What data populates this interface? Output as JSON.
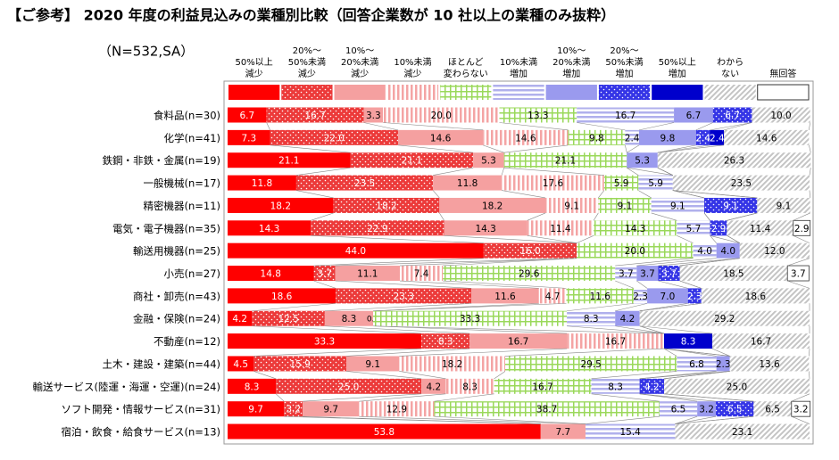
{
  "chart_data": {
    "type": "stacked-bar-horizontal",
    "title": "【ご参考】 2020 年度の利益見込みの業種別比較（回答企業数が 10 社以上の業種のみ抜粋）",
    "subtitle": "（N=532,SA）",
    "categories": [
      "食料品(n=30)",
      "化学(n=41)",
      "鉄鋼・非鉄・金属(n=19)",
      "一般機械(n=17)",
      "精密機器(n=11)",
      "電気・電子機器(n=35)",
      "輸送用機器(n=25)",
      "小売(n=27)",
      "商社・卸売(n=43)",
      "金融・保険(n=24)",
      "不動産(n=12)",
      "土木・建設・建築(n=44)",
      "輸送サービス(陸運・海運・空運)(n=24)",
      "ソフト開発・情報サービス(n=31)",
      "宿泊・飲食・給食サービス(n=13)"
    ],
    "xlim": [
      0,
      100
    ],
    "series": [
      {
        "name": "50%以上\n減少",
        "color": "#ff0000",
        "pattern": "solid",
        "values": [
          6.7,
          7.3,
          21.1,
          11.8,
          18.2,
          14.3,
          44.0,
          14.8,
          18.6,
          4.2,
          33.3,
          4.5,
          8.3,
          9.7,
          53.8
        ],
        "value_labels": [
          "6.7",
          "7.3",
          "21.1",
          "11.8",
          "18.2",
          "14.3",
          "44.0",
          "14.8",
          "18.6",
          "4.2",
          "33.3",
          "4.5",
          "8.3",
          "9.7",
          "53.8"
        ]
      },
      {
        "name": "20%～\n50%未満\n減少",
        "color": "#ec3a3a",
        "pattern": "dots",
        "values": [
          16.7,
          22.0,
          21.1,
          23.5,
          18.2,
          22.9,
          16.0,
          3.7,
          23.3,
          12.5,
          8.3,
          15.9,
          25.0,
          3.2,
          null
        ],
        "value_labels": [
          "16.7",
          "22.0",
          "21.1",
          "23.5",
          "18.2",
          "22.9",
          "16.0",
          "3.7",
          "23.3",
          "12.5",
          "8.3",
          "15.9",
          "25.0",
          "3.2",
          null
        ]
      },
      {
        "name": "10%～\n20%未満\n減少",
        "color": "#f5a0a0",
        "pattern": "solid",
        "values": [
          3.3,
          14.6,
          5.3,
          11.8,
          18.2,
          14.3,
          null,
          11.1,
          11.6,
          8.3,
          16.7,
          9.1,
          4.2,
          9.7,
          7.7
        ],
        "value_labels": [
          "3.3",
          "14.6",
          "5.3",
          "11.8",
          "18.2",
          "14.3",
          null,
          "11.1",
          "11.6",
          "8.3",
          "16.7",
          "9.1",
          "4.2",
          "9.7",
          "7.7"
        ]
      },
      {
        "name": "10%未満\n減少",
        "color": "#f4a4a4",
        "pattern": "vstripes",
        "values": [
          20.0,
          14.6,
          null,
          17.6,
          9.1,
          11.4,
          null,
          7.4,
          4.7,
          0.0,
          16.7,
          18.2,
          8.3,
          12.9,
          null
        ],
        "value_labels": [
          "20.0",
          "14.6",
          null,
          "17.6",
          "9.1",
          "11.4",
          null,
          "7.4",
          "4.7",
          "0.0",
          "16.7",
          "18.2",
          "8.3",
          "12.9",
          null
        ]
      },
      {
        "name": "ほとんど\n変わらない",
        "color": "#9ad85a",
        "pattern": "grid",
        "values": [
          13.3,
          9.8,
          21.1,
          5.9,
          9.1,
          14.3,
          20.0,
          29.6,
          11.6,
          33.3,
          null,
          29.5,
          16.7,
          38.7,
          null
        ],
        "value_labels": [
          "13.3",
          "9.8",
          "21.1",
          "5.9",
          "9.1",
          "14.3",
          "20.0",
          "29.6",
          "11.6",
          "33.3",
          null,
          "29.5",
          "16.7",
          "38.7",
          null
        ]
      },
      {
        "name": "10%未満\n増加",
        "color": "#b0b0ec",
        "pattern": "hstripes",
        "values": [
          16.7,
          2.4,
          null,
          5.9,
          9.1,
          5.7,
          4.0,
          3.7,
          2.3,
          8.3,
          null,
          6.8,
          8.3,
          6.5,
          15.4
        ],
        "value_labels": [
          "16.7",
          "2.4",
          null,
          "5.9",
          "9.1",
          "5.7",
          "4.0",
          "3.7",
          "2.3",
          "8.3",
          null,
          "6.8",
          "8.3",
          "6.5",
          "15.4"
        ]
      },
      {
        "name": "10%～\n20%未満\n増加",
        "color": "#9a9aee",
        "pattern": "solid",
        "values": [
          6.7,
          9.8,
          5.3,
          null,
          null,
          null,
          4.0,
          3.7,
          7.0,
          4.2,
          null,
          2.3,
          null,
          3.2,
          null
        ],
        "value_labels": [
          "6.7",
          "9.8",
          "5.3",
          null,
          null,
          null,
          "4.0",
          "3.7",
          "7.0",
          "4.2",
          null,
          "2.3",
          null,
          "3.2",
          null
        ]
      },
      {
        "name": "20%～\n50%未満\n増加",
        "color": "#3535e6",
        "pattern": "dots",
        "values": [
          6.7,
          2.4,
          null,
          null,
          9.1,
          2.9,
          null,
          3.7,
          2.3,
          null,
          null,
          null,
          4.2,
          6.5,
          null
        ],
        "value_labels": [
          "6.7",
          "2.4",
          null,
          null,
          "9.1",
          "2.9",
          null,
          "3.7",
          "2.3",
          null,
          null,
          null,
          "4.2",
          "6.5",
          null
        ]
      },
      {
        "name": "50%以上\n増加",
        "color": "#0000cc",
        "pattern": "solid",
        "values": [
          null,
          2.4,
          null,
          null,
          null,
          null,
          null,
          null,
          null,
          null,
          8.3,
          null,
          null,
          null,
          null
        ],
        "value_labels": [
          null,
          "2.4",
          null,
          null,
          null,
          null,
          null,
          null,
          null,
          null,
          "8.3",
          null,
          null,
          null,
          null
        ]
      },
      {
        "name": "わから\nない",
        "color": "#c4c4c4",
        "pattern": "diagonal",
        "values": [
          10.0,
          14.6,
          26.3,
          23.5,
          9.1,
          11.4,
          12.0,
          18.5,
          18.6,
          29.2,
          16.7,
          13.6,
          25.0,
          6.5,
          23.1
        ],
        "value_labels": [
          "10.0",
          "14.6",
          "26.3",
          "23.5",
          "9.1",
          "11.4",
          "12.0",
          "18.5",
          "18.6",
          "29.2",
          "16.7",
          "13.6",
          "25.0",
          "6.5",
          "23.1"
        ]
      },
      {
        "name": "無回答",
        "color": "#ffffff",
        "pattern": "solid",
        "values": [
          null,
          null,
          null,
          null,
          null,
          2.9,
          null,
          3.7,
          null,
          null,
          null,
          null,
          null,
          3.2,
          null
        ],
        "value_labels": [
          null,
          null,
          null,
          null,
          null,
          "2.9",
          null,
          "3.7",
          null,
          null,
          null,
          null,
          null,
          "3.2",
          null
        ]
      }
    ]
  }
}
